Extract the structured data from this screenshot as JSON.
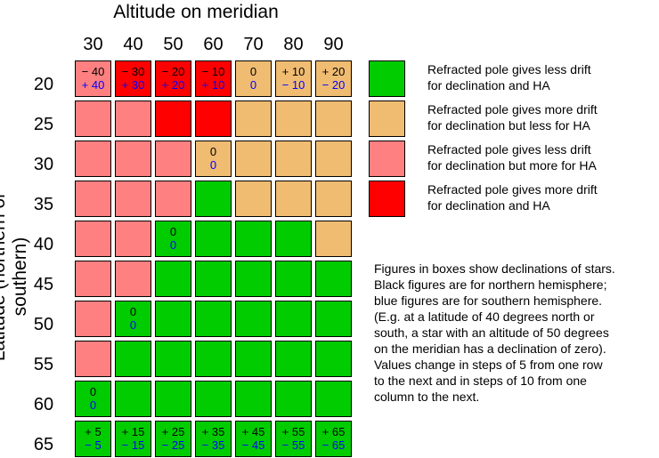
{
  "title": "Altitude on meridian",
  "ylabel": "Latitude (northern or southern)",
  "altitudes": [
    "30",
    "40",
    "50",
    "60",
    "70",
    "80",
    "90"
  ],
  "latitudes": [
    "20",
    "25",
    "30",
    "35",
    "40",
    "45",
    "50",
    "55",
    "60",
    "65"
  ],
  "colors": {
    "G": "#00cc00",
    "O": "#f0bc72",
    "P": "#ff8080",
    "R": "#ff0000"
  },
  "grid": [
    [
      "P",
      "R",
      "R",
      "R",
      "O",
      "O",
      "O"
    ],
    [
      "P",
      "P",
      "R",
      "R",
      "O",
      "O",
      "O"
    ],
    [
      "P",
      "P",
      "P",
      "O",
      "O",
      "O",
      "O"
    ],
    [
      "P",
      "P",
      "P",
      "G",
      "O",
      "O",
      "O"
    ],
    [
      "P",
      "P",
      "G",
      "G",
      "G",
      "G",
      "O"
    ],
    [
      "P",
      "P",
      "G",
      "G",
      "G",
      "G",
      "G"
    ],
    [
      "P",
      "G",
      "G",
      "G",
      "G",
      "G",
      "G"
    ],
    [
      "P",
      "G",
      "G",
      "G",
      "G",
      "G",
      "G"
    ],
    [
      "G",
      "G",
      "G",
      "G",
      "G",
      "G",
      "G"
    ],
    [
      "G",
      "G",
      "G",
      "G",
      "G",
      "G",
      "G"
    ]
  ],
  "figures": [
    {
      "row": 0,
      "col": 0,
      "north": "− 40",
      "south": "+ 40"
    },
    {
      "row": 0,
      "col": 1,
      "north": "− 30",
      "south": "+ 30"
    },
    {
      "row": 0,
      "col": 2,
      "north": "− 20",
      "south": "+ 20"
    },
    {
      "row": 0,
      "col": 3,
      "north": "− 10",
      "south": "+ 10"
    },
    {
      "row": 0,
      "col": 4,
      "north": "0",
      "south": "0"
    },
    {
      "row": 0,
      "col": 5,
      "north": "+ 10",
      "south": "− 10"
    },
    {
      "row": 0,
      "col": 6,
      "north": "+ 20",
      "south": "− 20"
    },
    {
      "row": 2,
      "col": 3,
      "north": "0",
      "south": "0"
    },
    {
      "row": 4,
      "col": 2,
      "north": "0",
      "south": "0"
    },
    {
      "row": 6,
      "col": 1,
      "north": "0",
      "south": "0"
    },
    {
      "row": 8,
      "col": 0,
      "north": "0",
      "south": "0"
    },
    {
      "row": 9,
      "col": 0,
      "north": "+ 5",
      "south": "− 5"
    },
    {
      "row": 9,
      "col": 1,
      "north": "+ 15",
      "south": "− 15"
    },
    {
      "row": 9,
      "col": 2,
      "north": "+ 25",
      "south": "− 25"
    },
    {
      "row": 9,
      "col": 3,
      "north": "+ 35",
      "south": "− 35"
    },
    {
      "row": 9,
      "col": 4,
      "north": "+ 45",
      "south": "− 45"
    },
    {
      "row": 9,
      "col": 5,
      "north": "+ 55",
      "south": "− 55"
    },
    {
      "row": 9,
      "col": 6,
      "north": "+ 65",
      "south": "− 65"
    }
  ],
  "legend": [
    {
      "key": "G",
      "line1": "Refracted pole gives less drift",
      "line2": "for declination and HA"
    },
    {
      "key": "O",
      "line1": "Refracted pole gives more drift",
      "line2": "for declination but less for HA"
    },
    {
      "key": "P",
      "line1": "Refracted pole gives less drift",
      "line2": "for declination but more for HA"
    },
    {
      "key": "R",
      "line1": "Refracted pole gives more drift",
      "line2": "for declination and HA"
    }
  ],
  "note": [
    "Figures in boxes show declinations of stars.",
    "Black figures are for northern hemisphere;",
    "blue figures are for southern hemisphere.",
    "(E.g. at a latitude of 40 degrees north or",
    "south, a star with an altitude of 50 degrees",
    "on the meridian has a declination of zero).",
    "Values change in steps of 5 from one row",
    "to the next and in steps of 10 from one",
    "column to the next."
  ]
}
